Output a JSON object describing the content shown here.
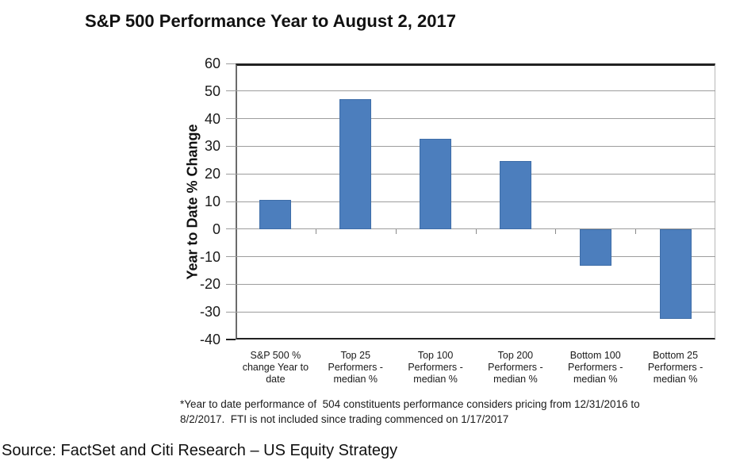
{
  "title": "S&P 500 Performance Year to August 2, 2017",
  "chart_data": {
    "type": "bar",
    "title": "S&P 500 Performance Year to August 2, 2017",
    "xlabel": "",
    "ylabel": "Year to Date % Change",
    "ylim": [
      -40,
      60
    ],
    "ytick_step": 10,
    "grid": true,
    "legend": "none",
    "bar_color": "#4c7ebd",
    "categories": [
      "S&P 500 % change Year to date",
      "Top 25 Performers - median %",
      "Top 100 Performers - median %",
      "Top 200 Performers - median %",
      "Bottom 100 Performers - median %",
      "Bottom 25 Performers - median %"
    ],
    "category_label_lines": [
      [
        "S&P 500 %",
        "change Year to",
        "date"
      ],
      [
        "Top 25",
        "Performers -",
        "median %"
      ],
      [
        "Top 100",
        "Performers -",
        "median %"
      ],
      [
        "Top 200",
        "Performers -",
        "median %"
      ],
      [
        "Bottom 100",
        "Performers -",
        "median %"
      ],
      [
        "Bottom 25",
        "Performers -",
        "median %"
      ]
    ],
    "values": [
      10.6,
      47.0,
      32.6,
      24.6,
      -13.3,
      -32.5
    ]
  },
  "footnote": {
    "lines": [
      "*Year to date performance of  504 constituents performance considers pricing from 12/31/2016 to",
      "8/2/2017.  FTI is not included since trading commenced on 1/17/2017"
    ]
  },
  "source": "Source: FactSet and Citi Research – US Equity Strategy",
  "colors": {
    "bar": "#4c7ebd",
    "gridline": "#9d9d9d",
    "axis_dark": "#222222",
    "axis_light": "#b8b8b8",
    "text": "#1a1a1a"
  }
}
